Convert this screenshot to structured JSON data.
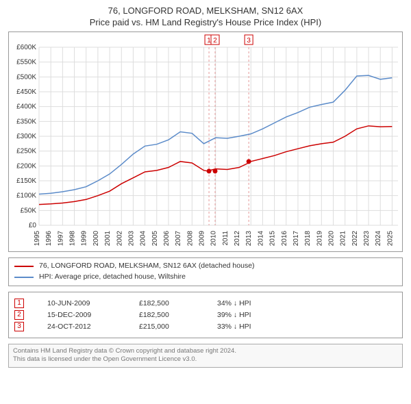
{
  "title1": "76, LONGFORD ROAD, MELKSHAM, SN12 6AX",
  "title2": "Price paid vs. HM Land Registry's House Price Index (HPI)",
  "chart": {
    "type": "line",
    "background_color": "#ffffff",
    "grid_color": "#dddddd",
    "border_color": "#999999",
    "xlim": [
      1995,
      2025.5
    ],
    "ylim": [
      0,
      600000
    ],
    "ytick_step": 50000,
    "x_ticks": [
      1995,
      1996,
      1997,
      1998,
      1999,
      2000,
      2001,
      2002,
      2003,
      2004,
      2005,
      2006,
      2007,
      2008,
      2009,
      2010,
      2011,
      2012,
      2013,
      2014,
      2015,
      2016,
      2017,
      2018,
      2019,
      2020,
      2021,
      2022,
      2023,
      2024,
      2025
    ],
    "y_tick_labels": [
      "£0",
      "£50K",
      "£100K",
      "£150K",
      "£200K",
      "£250K",
      "£300K",
      "£350K",
      "£400K",
      "£450K",
      "£500K",
      "£550K",
      "£600K"
    ],
    "label_fontsize": 10,
    "series": [
      {
        "name": "property",
        "color": "#cc0000",
        "line_width": 1.5,
        "points": [
          [
            1995,
            70000
          ],
          [
            1996,
            72000
          ],
          [
            1997,
            75000
          ],
          [
            1998,
            80000
          ],
          [
            1999,
            87000
          ],
          [
            2000,
            100000
          ],
          [
            2001,
            115000
          ],
          [
            2002,
            140000
          ],
          [
            2003,
            160000
          ],
          [
            2004,
            180000
          ],
          [
            2005,
            185000
          ],
          [
            2006,
            195000
          ],
          [
            2007,
            215000
          ],
          [
            2008,
            210000
          ],
          [
            2009,
            185000
          ],
          [
            2009.3,
            183000
          ],
          [
            2010,
            190000
          ],
          [
            2011,
            188000
          ],
          [
            2012,
            195000
          ],
          [
            2012.8,
            210000
          ],
          [
            2013,
            215000
          ],
          [
            2014,
            225000
          ],
          [
            2015,
            235000
          ],
          [
            2016,
            248000
          ],
          [
            2017,
            258000
          ],
          [
            2018,
            268000
          ],
          [
            2019,
            275000
          ],
          [
            2020,
            280000
          ],
          [
            2021,
            300000
          ],
          [
            2022,
            325000
          ],
          [
            2023,
            335000
          ],
          [
            2024,
            332000
          ],
          [
            2025,
            333000
          ]
        ]
      },
      {
        "name": "hpi",
        "color": "#5b8bc9",
        "line_width": 1.5,
        "points": [
          [
            1995,
            105000
          ],
          [
            1996,
            108000
          ],
          [
            1997,
            113000
          ],
          [
            1998,
            120000
          ],
          [
            1999,
            130000
          ],
          [
            2000,
            150000
          ],
          [
            2001,
            173000
          ],
          [
            2002,
            205000
          ],
          [
            2003,
            240000
          ],
          [
            2004,
            267000
          ],
          [
            2005,
            273000
          ],
          [
            2006,
            288000
          ],
          [
            2007,
            315000
          ],
          [
            2008,
            310000
          ],
          [
            2009,
            275000
          ],
          [
            2010,
            295000
          ],
          [
            2011,
            293000
          ],
          [
            2012,
            300000
          ],
          [
            2013,
            308000
          ],
          [
            2014,
            325000
          ],
          [
            2015,
            345000
          ],
          [
            2016,
            365000
          ],
          [
            2017,
            380000
          ],
          [
            2018,
            398000
          ],
          [
            2019,
            407000
          ],
          [
            2020,
            415000
          ],
          [
            2021,
            455000
          ],
          [
            2022,
            503000
          ],
          [
            2023,
            505000
          ],
          [
            2024,
            492000
          ],
          [
            2025,
            497000
          ]
        ]
      }
    ],
    "event_markers": [
      {
        "num": "1",
        "x": 2009.44,
        "y": 182500,
        "color": "#cc0000"
      },
      {
        "num": "2",
        "x": 2009.96,
        "y": 182500,
        "color": "#cc0000"
      },
      {
        "num": "3",
        "x": 2012.82,
        "y": 215000,
        "color": "#cc0000"
      }
    ],
    "marker_dashed_color": "#e59999"
  },
  "legend": {
    "items": [
      {
        "color": "#cc0000",
        "label": "76, LONGFORD ROAD, MELKSHAM, SN12 6AX (detached house)"
      },
      {
        "color": "#5b8bc9",
        "label": "HPI: Average price, detached house, Wiltshire"
      }
    ]
  },
  "events": [
    {
      "num": "1",
      "date": "10-JUN-2009",
      "price": "£182,500",
      "diff": "34% ↓ HPI"
    },
    {
      "num": "2",
      "date": "15-DEC-2009",
      "price": "£182,500",
      "diff": "39% ↓ HPI"
    },
    {
      "num": "3",
      "date": "24-OCT-2012",
      "price": "£215,000",
      "diff": "33% ↓ HPI"
    }
  ],
  "footer": {
    "line1": "Contains HM Land Registry data © Crown copyright and database right 2024.",
    "line2": "This data is licensed under the Open Government Licence v3.0."
  }
}
